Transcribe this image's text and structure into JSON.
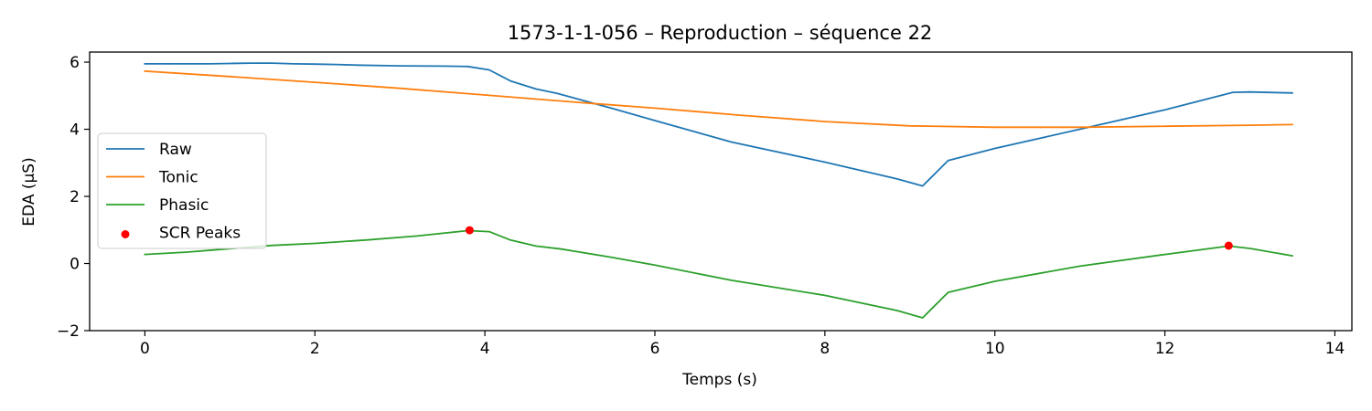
{
  "chart_data": {
    "type": "line",
    "title": "1573-1-1-056 – Reproduction – séquence 22",
    "xlabel": "Temps (s)",
    "ylabel": "EDA (µS)",
    "xlim": [
      -0.65,
      14.2
    ],
    "ylim": [
      -2,
      6.3
    ],
    "xticks": [
      0,
      2,
      4,
      6,
      8,
      10,
      12,
      14
    ],
    "yticks": [
      -2,
      0,
      2,
      4,
      6
    ],
    "grid": false,
    "legend_position": "center-left",
    "series": [
      {
        "name": "Raw",
        "color": "#1f77b4",
        "x": [
          0,
          0.25,
          0.5,
          0.75,
          1.0,
          1.25,
          1.5,
          1.75,
          2.0,
          2.25,
          2.5,
          3.0,
          3.5,
          3.8,
          4.05,
          4.3,
          4.6,
          4.85,
          5.5,
          6.0,
          6.9,
          8.0,
          8.85,
          9.15,
          9.45,
          10.0,
          11.0,
          12.0,
          12.8,
          13.0,
          13.5
        ],
        "y": [
          5.95,
          5.95,
          5.95,
          5.95,
          5.96,
          5.97,
          5.97,
          5.95,
          5.94,
          5.93,
          5.91,
          5.89,
          5.88,
          5.87,
          5.77,
          5.44,
          5.2,
          5.07,
          4.62,
          4.26,
          3.62,
          3.02,
          2.52,
          2.31,
          3.07,
          3.43,
          4.0,
          4.58,
          5.1,
          5.11,
          5.08
        ]
      },
      {
        "name": "Tonic",
        "color": "#ff7f0e",
        "x": [
          0,
          1,
          2,
          3,
          4,
          5,
          6,
          7,
          8,
          9,
          10,
          11,
          12,
          13,
          13.5
        ],
        "y": [
          5.73,
          5.57,
          5.4,
          5.22,
          5.02,
          4.82,
          4.63,
          4.42,
          4.23,
          4.1,
          4.06,
          4.06,
          4.09,
          4.12,
          4.14
        ]
      },
      {
        "name": "Phasic",
        "color": "#2ca02c",
        "x": [
          0,
          0.5,
          1.0,
          1.5,
          2.0,
          2.6,
          3.2,
          3.8,
          4.05,
          4.3,
          4.6,
          4.9,
          5.5,
          6.0,
          6.9,
          8.0,
          8.85,
          9.15,
          9.45,
          10.0,
          11.0,
          12.0,
          12.75,
          13.0,
          13.5
        ],
        "y": [
          0.27,
          0.34,
          0.44,
          0.54,
          0.6,
          0.7,
          0.82,
          0.98,
          0.95,
          0.7,
          0.52,
          0.43,
          0.18,
          -0.05,
          -0.5,
          -0.95,
          -1.4,
          -1.62,
          -0.86,
          -0.53,
          -0.08,
          0.27,
          0.52,
          0.45,
          0.23
        ]
      }
    ],
    "scatter": {
      "name": "SCR Peaks",
      "color": "#ff0000",
      "points": [
        {
          "x": 3.82,
          "y": 0.99
        },
        {
          "x": 12.75,
          "y": 0.53
        }
      ]
    }
  }
}
